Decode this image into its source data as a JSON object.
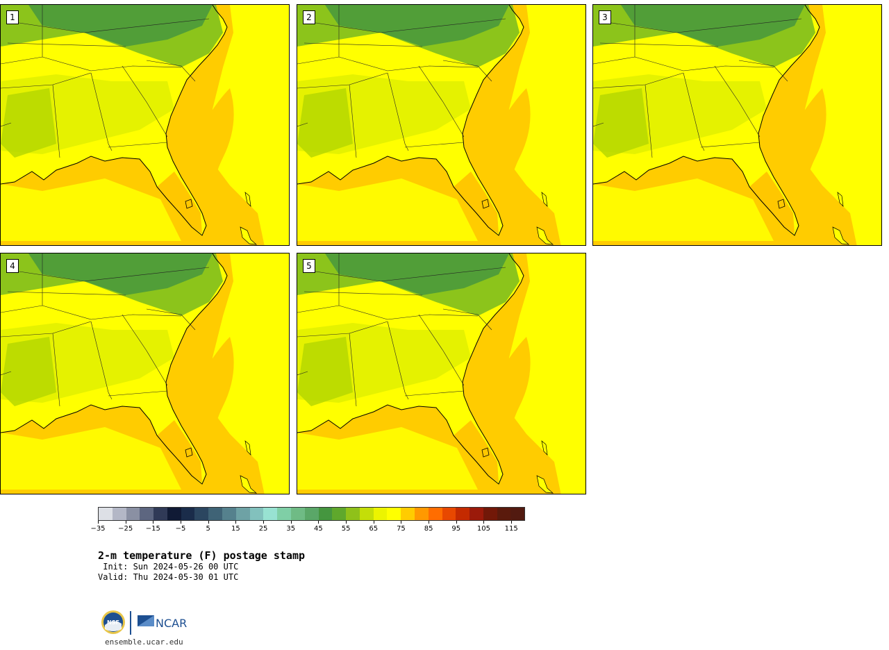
{
  "figure": {
    "title": "2-m temperature (F) postage stamp",
    "init": " Init: Sun 2024-05-26 00 UTC",
    "valid": "Valid: Thu 2024-05-30 01 UTC",
    "website": "ensemble.ucar.edu",
    "logos": {
      "nsf": "NSF",
      "ncar": "NCAR"
    }
  },
  "panels": [
    {
      "label": "1",
      "member": 1
    },
    {
      "label": "2",
      "member": 2
    },
    {
      "label": "3",
      "member": 3
    },
    {
      "label": "4",
      "member": 4
    },
    {
      "label": "5",
      "member": 5
    }
  ],
  "colorbar": {
    "ticks": [
      "−35",
      "−25",
      "−15",
      "−5",
      "5",
      "15",
      "25",
      "35",
      "45",
      "55",
      "65",
      "75",
      "85",
      "95",
      "105",
      "115"
    ],
    "tick_values": [
      -35,
      -25,
      -15,
      -5,
      5,
      15,
      25,
      35,
      45,
      55,
      65,
      75,
      85,
      95,
      105,
      115
    ],
    "min": -35,
    "max": 120,
    "step": 5,
    "colors": [
      "#dde0e6",
      "#b3b7c6",
      "#8a90a3",
      "#5d6680",
      "#303a57",
      "#101a35",
      "#1a2c4a",
      "#2b4660",
      "#3f6376",
      "#55818d",
      "#6ea2a5",
      "#82c1bd",
      "#98e2d2",
      "#7fcfa6",
      "#6fbb85",
      "#5aa768",
      "#45963f",
      "#5fa82c",
      "#8fc11a",
      "#c4de08",
      "#ecf400",
      "#ffff00",
      "#ffcc00",
      "#ff9900",
      "#ff6d00",
      "#e84800",
      "#c42a00",
      "#9b1a0a",
      "#721808",
      "#5a1a0c",
      "#521a10"
    ]
  },
  "map_colors": {
    "ocean": "#ffcc00",
    "warm": "#ffff00",
    "mild": "#e1f000",
    "cool": "#b3d600",
    "cooler": "#7fbe1e",
    "cold": "#4a9a3c",
    "hot": "#ff9900"
  }
}
